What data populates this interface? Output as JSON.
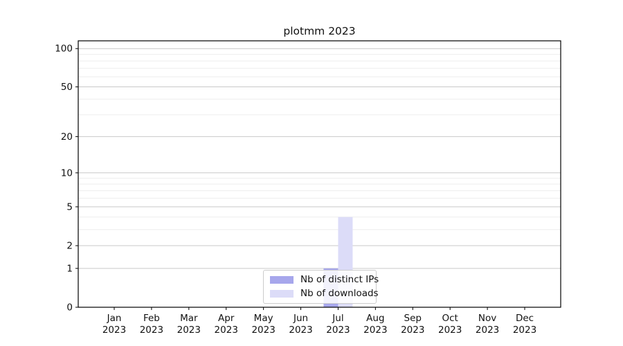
{
  "chart_data": {
    "type": "bar",
    "title": "plotmm 2023",
    "categories": [
      "Jan",
      "Feb",
      "Mar",
      "Apr",
      "May",
      "Jun",
      "Jul",
      "Aug",
      "Sep",
      "Oct",
      "Nov",
      "Dec"
    ],
    "category_year": "2023",
    "series": [
      {
        "name": "Nb of distinct IPs",
        "color": "#a7a7ec",
        "values": [
          0,
          0,
          0,
          0,
          0,
          0,
          1,
          0,
          0,
          0,
          0,
          0
        ]
      },
      {
        "name": "Nb of downloads",
        "color": "#dcdcf8",
        "values": [
          0,
          0,
          0,
          0,
          0,
          0,
          4,
          0,
          0,
          0,
          0,
          0
        ]
      }
    ],
    "y_axis": {
      "scale": "log1p",
      "major_ticks": [
        0,
        1,
        2,
        5,
        10,
        20,
        50,
        100
      ],
      "major_tick_labels": [
        "0",
        "1",
        "2",
        "5",
        "10",
        "20",
        "50",
        "100"
      ],
      "minor_ticks": [
        3,
        4,
        6,
        7,
        8,
        9,
        30,
        40,
        60,
        70,
        80,
        90
      ],
      "max": 115
    },
    "xlabel": "",
    "ylabel": "",
    "grid": true,
    "legend_position": "lower center"
  },
  "colors": {
    "grid_major": "#c9c9c9",
    "grid_minor": "#ededed",
    "axis": "#000000",
    "background": "#ffffff"
  }
}
